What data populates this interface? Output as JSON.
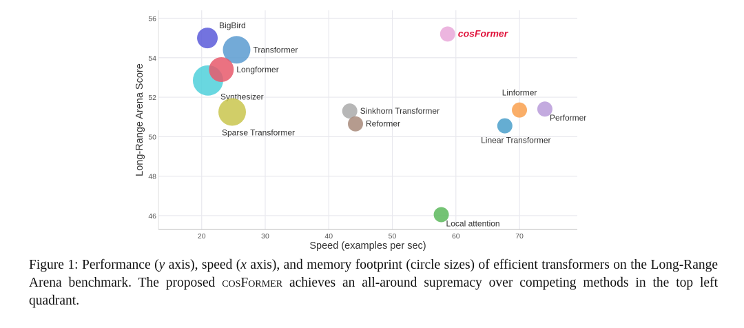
{
  "chart_data": {
    "type": "scatter",
    "title": "",
    "xlabel": "Speed (examples per sec)",
    "ylabel": "Long-Range Arena Score",
    "xlim": [
      13.2,
      79.1
    ],
    "ylim": [
      45.3,
      56.4
    ],
    "xticks": [
      20,
      30,
      40,
      50,
      60,
      70
    ],
    "yticks": [
      46,
      48,
      50,
      52,
      54,
      56
    ],
    "grid": true,
    "size_meaning": "memory footprint (relative circle size)",
    "points": [
      {
        "name": "BigBird",
        "x": 20.9,
        "y": 55.0,
        "size": 15,
        "color": "#5b5bd9",
        "label_pos": "top-right"
      },
      {
        "name": "Transformer",
        "x": 25.5,
        "y": 54.4,
        "size": 20,
        "color": "#5b9bd0",
        "label_pos": "right"
      },
      {
        "name": "Synthesizer",
        "x": 21.0,
        "y": 52.85,
        "size": 22,
        "color": "#4fd0da",
        "label_pos": "bottom-right"
      },
      {
        "name": "Longformer",
        "x": 23.1,
        "y": 53.4,
        "size": 18,
        "color": "#e8596b",
        "label_pos": "right"
      },
      {
        "name": "Sparse Transformer",
        "x": 24.8,
        "y": 51.25,
        "size": 20,
        "color": "#c9c64e",
        "label_pos": "bottom"
      },
      {
        "name": "Sinkhorn Transformer",
        "x": 43.3,
        "y": 51.3,
        "size": 11,
        "color": "#aaaaaa",
        "label_pos": "right"
      },
      {
        "name": "Reformer",
        "x": 44.2,
        "y": 50.65,
        "size": 11,
        "color": "#a8897a",
        "label_pos": "right"
      },
      {
        "name": "cosFormer",
        "x": 58.7,
        "y": 55.2,
        "size": 11,
        "color": "#e9a8d9",
        "label_pos": "right",
        "highlight": true
      },
      {
        "name": "Linformer",
        "x": 70.0,
        "y": 51.35,
        "size": 11,
        "color": "#f9a04e",
        "label_pos": "top"
      },
      {
        "name": "Performer",
        "x": 74.0,
        "y": 51.4,
        "size": 11,
        "color": "#b89bd9",
        "label_pos": "bottom-right"
      },
      {
        "name": "Linear Transformer",
        "x": 67.7,
        "y": 50.55,
        "size": 11,
        "color": "#4a9fca",
        "label_pos": "bottom"
      },
      {
        "name": "Local attention",
        "x": 57.7,
        "y": 46.05,
        "size": 11,
        "color": "#5cb85c",
        "label_pos": "bottom-right"
      }
    ],
    "highlight_color": "#e0143c"
  },
  "caption": {
    "prefix": "Figure 1: Performance (",
    "y": "y",
    "mid1": " axis), speed (",
    "x": "x",
    "mid2": " axis), and memory footprint (circle sizes) of efficient transformers on the Long-Range Arena benchmark.  The proposed ",
    "name": "cosFormer",
    "suffix": " achieves an all-around supremacy over competing methods in the top left quadrant."
  }
}
